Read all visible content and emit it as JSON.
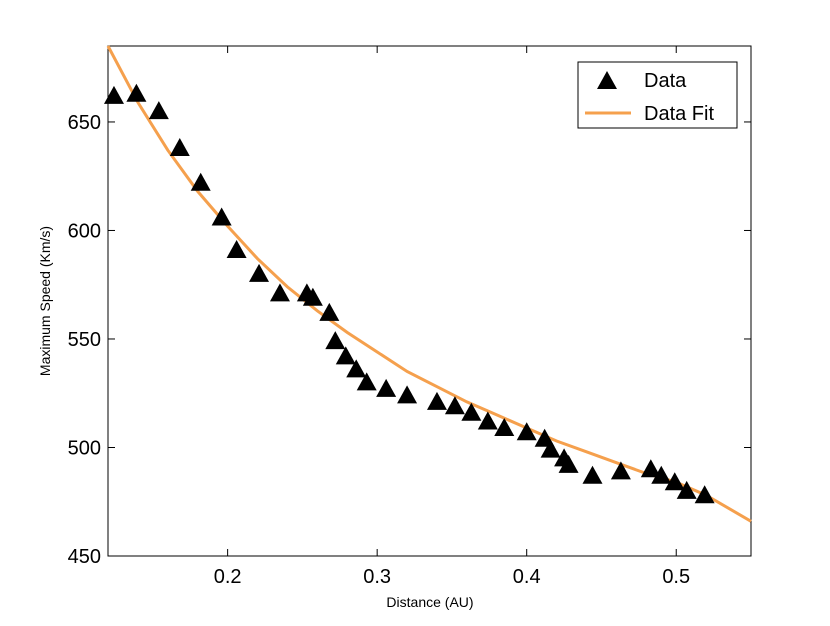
{
  "chart_data": {
    "type": "scatter",
    "title": "",
    "xlabel": "Distance (AU)",
    "ylabel": "Maximum Speed (Km/s)",
    "xlim": [
      0.12,
      0.55
    ],
    "ylim": [
      450,
      685
    ],
    "xticks": [
      0.2,
      0.3,
      0.4,
      0.5
    ],
    "yticks": [
      450,
      500,
      550,
      600,
      650
    ],
    "grid": false,
    "legend_position": "top-right",
    "series": [
      {
        "name": "Data",
        "kind": "scatter",
        "marker": "triangle",
        "color": "#000000",
        "x": [
          0.124,
          0.139,
          0.154,
          0.168,
          0.182,
          0.196,
          0.206,
          0.221,
          0.235,
          0.253,
          0.257,
          0.268,
          0.272,
          0.279,
          0.286,
          0.293,
          0.306,
          0.32,
          0.34,
          0.352,
          0.363,
          0.374,
          0.385,
          0.4,
          0.412,
          0.416,
          0.425,
          0.428,
          0.444,
          0.463,
          0.483,
          0.49,
          0.499,
          0.507,
          0.519
        ],
        "y": [
          662,
          663,
          655,
          638,
          622,
          606,
          591,
          580,
          571,
          571,
          569,
          562,
          549,
          542,
          536,
          530,
          527,
          524,
          521,
          519,
          516,
          512,
          509,
          507,
          504,
          499,
          495,
          492,
          487,
          489,
          490,
          487,
          484,
          480,
          478
        ]
      },
      {
        "name": "Data Fit",
        "kind": "line",
        "color": "#f5a04d",
        "x": [
          0.12,
          0.14,
          0.16,
          0.18,
          0.2,
          0.22,
          0.24,
          0.26,
          0.28,
          0.3,
          0.32,
          0.34,
          0.36,
          0.38,
          0.4,
          0.42,
          0.44,
          0.46,
          0.48,
          0.5,
          0.52,
          0.55
        ],
        "y": [
          685,
          659,
          637,
          618,
          602,
          587,
          574,
          563,
          553,
          544,
          535,
          528,
          521,
          515,
          509,
          503,
          498,
          493,
          488,
          484,
          478,
          466
        ]
      }
    ]
  }
}
